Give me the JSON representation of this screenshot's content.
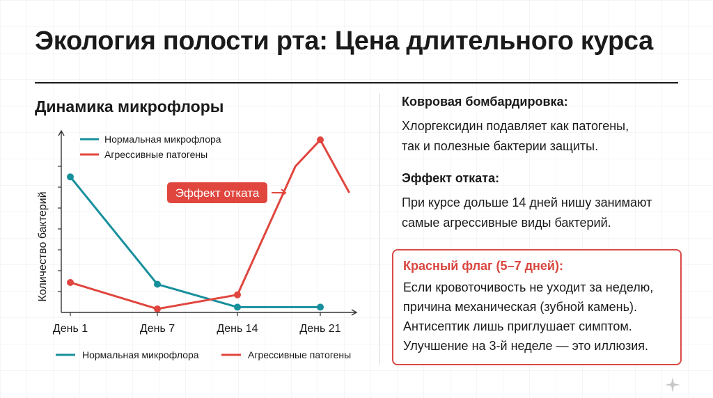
{
  "title": "Экология полости рта: Цена длительного курса",
  "chart_heading": "Динамика микрофлоры",
  "colors": {
    "normal": "#178f9c",
    "pathogen": "#e0463e",
    "text": "#1a1a1a",
    "flag": "#d84a46"
  },
  "chart_data": {
    "type": "line",
    "categories": [
      "День 1",
      "День 7",
      "День 14",
      "День 21"
    ],
    "ylabel": "Количество бактерий",
    "xlabel": "",
    "ylim": [
      0,
      10
    ],
    "grid": false,
    "legend_placement": [
      "top-left",
      "bottom"
    ],
    "series": [
      {
        "name": "Нормальная микрофлора",
        "color": "#178f9c",
        "points": [
          [
            0,
            7.7
          ],
          [
            1,
            1.6
          ],
          [
            2,
            0.3
          ],
          [
            3,
            0.3
          ]
        ]
      },
      {
        "name": "Агрессивные патогены",
        "color": "#e0463e",
        "points": [
          [
            0,
            1.7
          ],
          [
            1,
            0.2
          ],
          [
            2,
            1.0
          ],
          [
            2.7,
            8.3
          ],
          [
            3,
            9.8
          ],
          [
            3.35,
            6.8
          ]
        ]
      }
    ],
    "annotation": {
      "text": "Эффект отката",
      "x": 1.8,
      "y": 6.8
    }
  },
  "blocks": [
    {
      "heading": "Ковровая бомбардировка:",
      "text": "Хлоргексидин подавляет как патогены,\nтак и полезные бактерии защиты."
    },
    {
      "heading": "Эффект отката:",
      "text": "При курсе дольше 14 дней нишу занимают\nсамые агрессивные виды бактерий."
    }
  ],
  "flag": {
    "heading": "Красный флаг (5–7 дней):",
    "text": "Если кровоточивость не уходит за неделю,\nпричина механическая (зубной камень).\nАнтисептик лишь приглушает симптом.\nУлучшение на 3-й неделе — это иллюзия."
  }
}
